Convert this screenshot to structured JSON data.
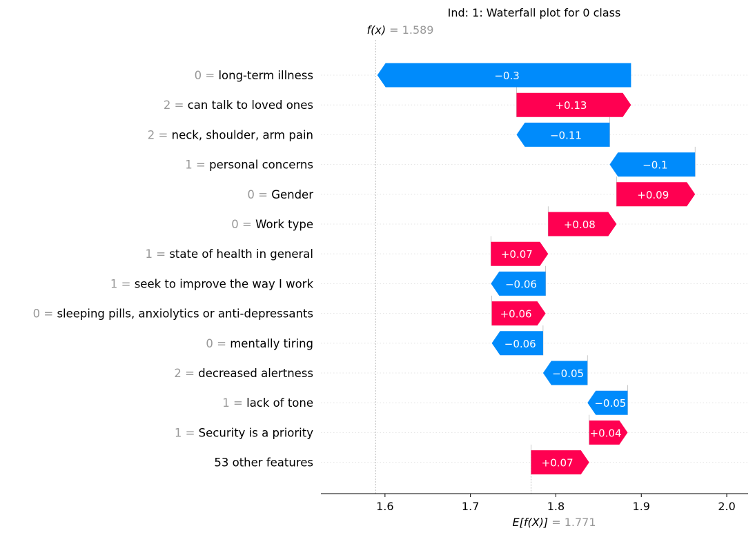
{
  "chart_data": {
    "type": "waterfall",
    "title": "Ind: 1: Waterfall plot for 0 class",
    "fx": {
      "label": "f(x)",
      "eq": " = ",
      "value": "1.589",
      "numeric": 1.589
    },
    "efx": {
      "label": "E[f(X)]",
      "eq": " = ",
      "value": "1.771",
      "numeric": 1.771
    },
    "xlim": [
      1.525,
      2.025
    ],
    "xticks": [
      1.6,
      1.7,
      1.8,
      1.9,
      2.0
    ],
    "xtick_labels": [
      "1.6",
      "1.7",
      "1.8",
      "1.9",
      "2.0"
    ],
    "colors": {
      "positive": "#ff0051",
      "negative": "#008bfb"
    },
    "features": [
      {
        "value_text": "0 = ",
        "name": "long-term illness",
        "shap": -0.297,
        "label": "−0.3"
      },
      {
        "value_text": "2 = ",
        "name": "can talk to loved ones",
        "shap": 0.134,
        "label": "+0.13"
      },
      {
        "value_text": "2 = ",
        "name": "neck, shoulder, arm pain",
        "shap": -0.109,
        "label": "−0.11"
      },
      {
        "value_text": "1 = ",
        "name": "personal concerns",
        "shap": -0.1,
        "label": "−0.1"
      },
      {
        "value_text": "0 = ",
        "name": "Gender",
        "shap": 0.092,
        "label": "+0.09"
      },
      {
        "value_text": "0 = ",
        "name": "Work type",
        "shap": 0.08,
        "label": "+0.08"
      },
      {
        "value_text": "1 = ",
        "name": "state of health in general",
        "shap": 0.067,
        "label": "+0.07"
      },
      {
        "value_text": "1 = ",
        "name": "seek to improve the way I work",
        "shap": -0.064,
        "label": "−0.06"
      },
      {
        "value_text": "0 = ",
        "name": "sleeping pills, anxiolytics or anti-depressants",
        "shap": 0.063,
        "label": "+0.06"
      },
      {
        "value_text": "0 = ",
        "name": "mentally tiring",
        "shap": -0.06,
        "label": "−0.06"
      },
      {
        "value_text": "2 = ",
        "name": "decreased alertness",
        "shap": -0.052,
        "label": "−0.05"
      },
      {
        "value_text": "1 = ",
        "name": "lack of tone",
        "shap": -0.047,
        "label": "−0.05"
      },
      {
        "value_text": "1 = ",
        "name": "Security is a priority",
        "shap": 0.045,
        "label": "+0.04"
      },
      {
        "value_text": "",
        "name": "53 other features",
        "shap": 0.068,
        "label": "+0.07"
      }
    ]
  }
}
